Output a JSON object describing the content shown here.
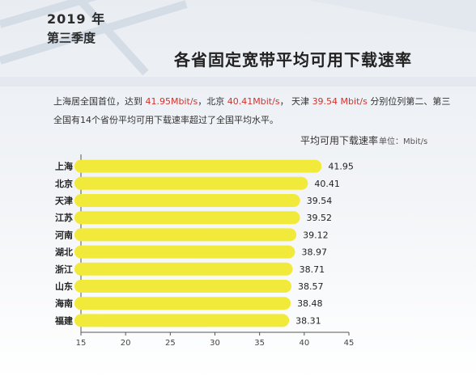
{
  "header": {
    "year": "2019 年",
    "quarter": "第三季度",
    "title": "各省固定宽带平均可用下载速率"
  },
  "description": {
    "line1_pre": "上海居全国首位，达到 ",
    "line1_v1": "41.95Mbit/s",
    "line1_mid1": "，北京 ",
    "line1_v2": "40.41Mbit/s",
    "line1_mid2": "， 天津 ",
    "line1_v3": "39.54 Mbit/s",
    "line1_post": " 分别位列第二、第三",
    "line2": "全国有14个省份平均可用下载速率超过了全国平均水平。"
  },
  "colors": {
    "bar": "#f2ea3a",
    "highlight": "#d1342f"
  },
  "chart_data": {
    "type": "bar",
    "orientation": "horizontal",
    "title": "平均可用下载速率",
    "unit": "单位：Mbit/s",
    "categories": [
      "上海",
      "北京",
      "天津",
      "江苏",
      "河南",
      "湖北",
      "浙江",
      "山东",
      "海南",
      "福建"
    ],
    "values": [
      41.95,
      40.41,
      39.54,
      39.52,
      39.12,
      38.97,
      38.71,
      38.57,
      38.48,
      38.31
    ],
    "value_labels": [
      "41.95",
      "40.41",
      "39.54",
      "39.52",
      "39.12",
      "38.97",
      "38.71",
      "38.57",
      "38.48",
      "38.31"
    ],
    "xlim": [
      15,
      45
    ],
    "xticks": [
      "15",
      "20",
      "25",
      "30",
      "35",
      "40",
      "45"
    ],
    "xlabel": "",
    "ylabel": ""
  }
}
